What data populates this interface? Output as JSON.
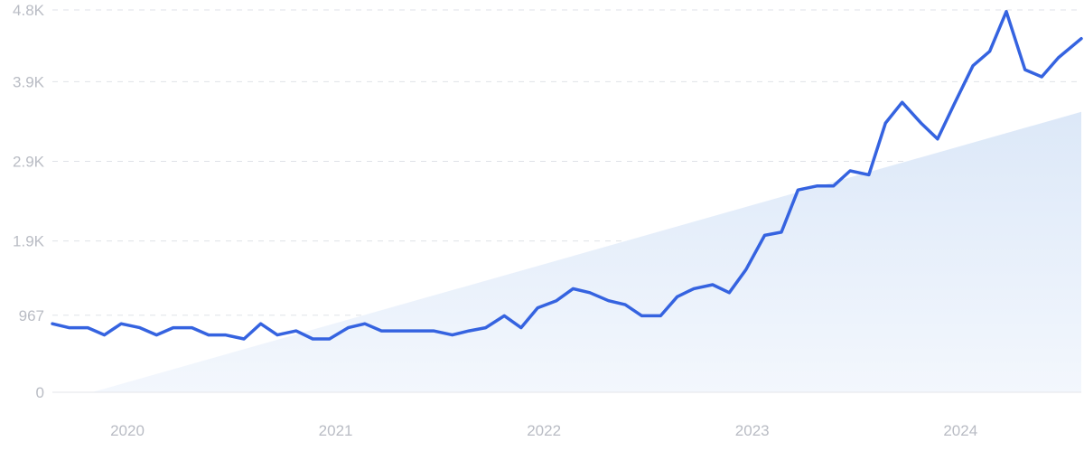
{
  "chart_data": {
    "type": "line",
    "title": "",
    "xlabel": "",
    "ylabel": "",
    "grid": true,
    "legend": "none",
    "xlim": [
      2019.64,
      2024.58
    ],
    "ylim": [
      0,
      4800
    ],
    "y_ticks": [
      {
        "value": 0,
        "label": "0"
      },
      {
        "value": 967,
        "label": "967"
      },
      {
        "value": 1900,
        "label": "1.9K"
      },
      {
        "value": 2900,
        "label": "2.9K"
      },
      {
        "value": 3900,
        "label": "3.9K"
      },
      {
        "value": 4800,
        "label": "4.8K"
      }
    ],
    "x_ticks": [
      {
        "value": 2020,
        "label": "2020"
      },
      {
        "value": 2021,
        "label": "2021"
      },
      {
        "value": 2022,
        "label": "2022"
      },
      {
        "value": 2023,
        "label": "2023"
      },
      {
        "value": 2024,
        "label": "2024"
      }
    ],
    "colors": {
      "line": "#3563e0",
      "trend_fill_top": "#dce8f8",
      "trend_fill_bottom": "#f3f7fd"
    },
    "trend": {
      "x": [
        2019.83,
        2024.58
      ],
      "y": [
        0,
        3520
      ]
    },
    "series": [
      {
        "x": [
          2019.64,
          2019.72,
          2019.81,
          2019.89,
          2019.97,
          2020.06,
          2020.14,
          2020.22,
          2020.31,
          2020.39,
          2020.47,
          2020.56,
          2020.64,
          2020.72,
          2020.81,
          2020.89,
          2020.97,
          2021.06,
          2021.14,
          2021.22,
          2021.31,
          2021.39,
          2021.47,
          2021.56,
          2021.64,
          2021.72,
          2021.81,
          2021.89,
          2021.97,
          2022.06,
          2022.14,
          2022.22,
          2022.31,
          2022.39,
          2022.47,
          2022.56,
          2022.64,
          2022.72,
          2022.81,
          2022.89,
          2022.97,
          2023.06,
          2023.14,
          2023.22,
          2023.31,
          2023.39,
          2023.47,
          2023.56,
          2023.64,
          2023.72,
          2023.81,
          2023.89,
          2023.97,
          2024.06,
          2024.14,
          2024.22,
          2024.31,
          2024.39,
          2024.47,
          2024.58
        ],
        "values": [
          860,
          810,
          810,
          720,
          860,
          810,
          720,
          810,
          810,
          720,
          720,
          670,
          860,
          720,
          770,
          670,
          670,
          810,
          860,
          770,
          770,
          770,
          770,
          720,
          770,
          810,
          960,
          810,
          1060,
          1150,
          1300,
          1250,
          1150,
          1100,
          960,
          960,
          1200,
          1300,
          1350,
          1250,
          1540,
          1970,
          2010,
          2540,
          2590,
          2590,
          2780,
          2730,
          3380,
          3640,
          3380,
          3180,
          3620,
          4100,
          4280,
          4780,
          4050,
          3960,
          4200,
          4440
        ]
      }
    ]
  }
}
